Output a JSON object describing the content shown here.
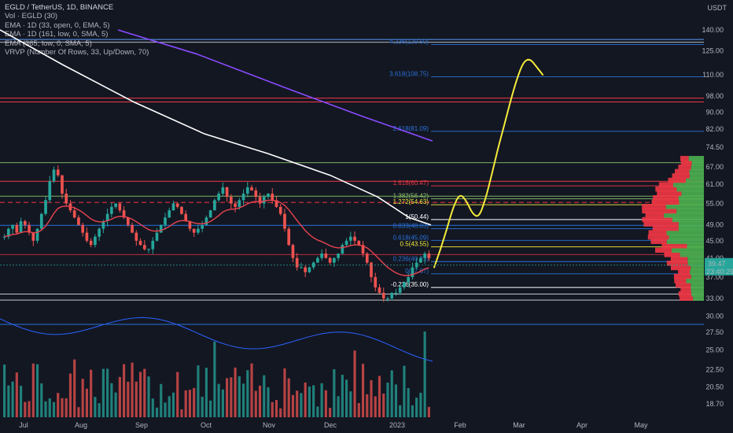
{
  "legend": {
    "symbol": "EGLD / TetherUS, 1D, BINANCE",
    "vol": "Vol · EGLD (30)",
    "ema1": "EMA · 1D (33, open, 0, EMA, 5)",
    "ema2": "EMA · 1D (161, low, 0, SMA, 5)",
    "ema3": "EMA (365, low, 0, SMA, 5)",
    "vrvp": "VRVP (Number Of Rows, 33, Up/Down, 70)"
  },
  "currency": "USDT",
  "colors": {
    "bg": "#131722",
    "up": "#26a69a",
    "down": "#ef5350",
    "ema33": "#e8434f",
    "ema161": "#ffffff",
    "ema365": "#8a4bff",
    "projection": "#f5eb3b",
    "fib": "#2a72d9",
    "vol_ma": "#2a62ff",
    "vp_up": "#4caf50",
    "vp_down": "#f23645",
    "price_tag": "#26a69a"
  },
  "chart_data": {
    "type": "candlestick",
    "price_axis": {
      "scale": "log",
      "ticks": [
        "140.00",
        "125.00",
        "110.00",
        "98.00",
        "90.00",
        "82.00",
        "74.50",
        "67.00",
        "61.00",
        "55.00",
        "49.00",
        "45.00",
        "41.00",
        "37.00",
        "33.00",
        "30.00",
        "27.50",
        "25.00",
        "22.50",
        "20.50",
        "18.70"
      ],
      "last_price": "39.47",
      "countdown": "23:40:29"
    },
    "time_axis": {
      "ticks": [
        "Jul",
        "Aug",
        "Sep",
        "Oct",
        "Nov",
        "Dec",
        "2023",
        "Feb",
        "Mar",
        "Apr",
        "May"
      ]
    },
    "fib_levels": [
      {
        "ratio": "4.236",
        "price": "129.50"
      },
      {
        "ratio": "3.618",
        "price": "108.75"
      },
      {
        "ratio": "2.618",
        "price": "81.09"
      },
      {
        "ratio": "1.618",
        "price": "60.47"
      },
      {
        "ratio": "1.382",
        "price": "56.42"
      },
      {
        "ratio": "1.272",
        "price": "54.63"
      },
      {
        "ratio": "1",
        "price": "50.44"
      },
      {
        "ratio": "0.833",
        "price": "48.03"
      },
      {
        "ratio": "0.618",
        "price": "45.09"
      },
      {
        "ratio": "0.5",
        "price": "43.55"
      },
      {
        "ratio": "0.236",
        "price": "40.23"
      },
      {
        "ratio": "0",
        "price": "37.67"
      },
      {
        "ratio": "-0.236",
        "price": "35.00"
      }
    ],
    "price_series_approx": [
      46,
      48,
      49,
      47,
      50,
      49,
      47,
      45,
      48,
      52,
      56,
      62,
      66,
      64,
      58,
      55,
      53,
      51,
      49,
      47,
      45,
      44,
      46,
      48,
      50,
      52,
      54,
      55,
      53,
      51,
      49,
      47,
      45,
      44,
      43,
      43,
      45,
      47,
      49,
      51,
      53,
      55,
      54,
      52,
      50,
      48,
      47,
      48,
      49,
      51,
      53,
      56,
      58,
      60,
      57,
      55,
      54,
      56,
      58,
      60,
      59,
      57,
      55,
      57,
      58,
      56,
      54,
      52,
      48,
      44,
      41,
      39,
      39,
      38,
      39,
      40,
      41,
      42,
      41,
      40,
      41,
      42,
      44,
      45,
      46,
      45,
      44,
      42,
      40,
      37,
      35,
      34,
      33,
      33,
      34,
      34,
      35,
      36,
      37,
      39,
      40,
      41,
      42,
      41
    ],
    "projection_path": [
      39,
      43,
      48,
      54,
      58,
      56,
      52,
      51,
      56,
      64,
      74,
      84,
      96,
      108,
      118,
      120,
      115,
      110
    ]
  }
}
